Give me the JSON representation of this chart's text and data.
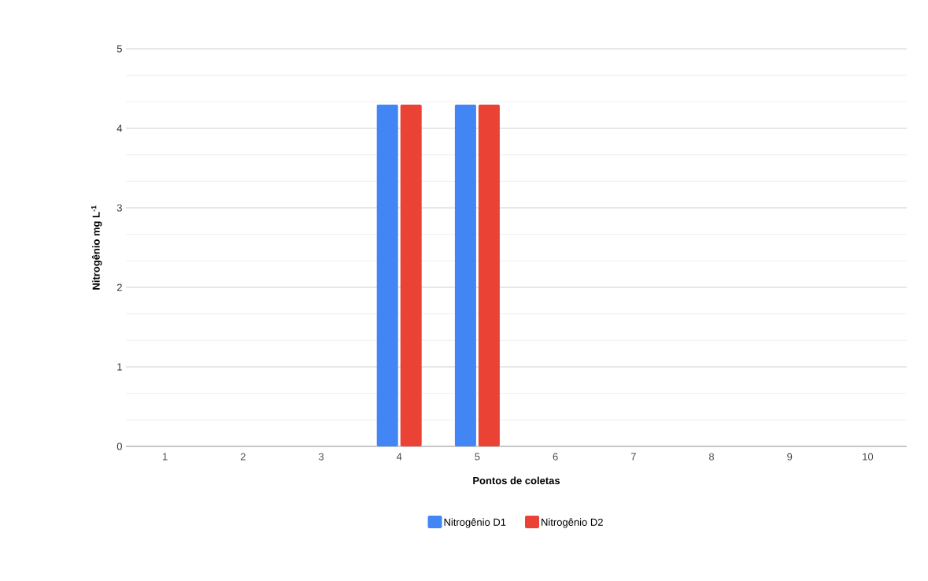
{
  "chart_data": {
    "type": "bar",
    "xlabel": "Pontos de coletas",
    "ylabel": "Nitrogênio mg L$^{-1}$",
    "categories": [
      "1",
      "2",
      "3",
      "4",
      "5",
      "6",
      "7",
      "8",
      "9",
      "10"
    ],
    "series": [
      {
        "name": "Nitrogênio D1",
        "color": "#4285f4",
        "values": [
          null,
          null,
          null,
          4.3,
          4.3,
          null,
          null,
          null,
          null,
          null
        ]
      },
      {
        "name": "Nitrogênio D2",
        "color": "#ea4335",
        "values": [
          null,
          null,
          null,
          4.3,
          4.3,
          null,
          null,
          null,
          null,
          null
        ]
      }
    ],
    "ylim": [
      0,
      5
    ],
    "yticks": [
      0,
      1,
      2,
      3,
      4,
      5
    ],
    "grid": "y",
    "legend": "bottom"
  }
}
